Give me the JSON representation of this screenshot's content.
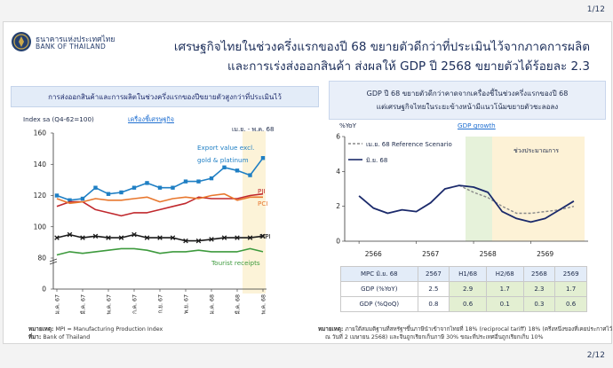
{
  "pages": {
    "top": "1/12",
    "bottom": "2/12"
  },
  "bank": {
    "name_th": "ธนาคารแห่งประเทศไทย",
    "name_en": "BANK OF THAILAND"
  },
  "headline": {
    "line1": "เศรษฐกิจไทยในช่วงครึ่งแรกของปี 68 ขยายตัวดีกว่าที่ประเมินไว้จากภาคการผลิต",
    "line2": "และการเร่งส่งออกสินค้า ส่งผลให้ GDP ปี 2568 ขยายตัวได้ร้อยละ 2.3"
  },
  "left": {
    "title": "การส่งออกสินค้าและการผลิตในช่วงครึ่งแรกของปีขยายตัวสูงกว่าที่ประเมินไว้",
    "index_label": "Index sa (Q4-62=100)",
    "link": "เครื่องชี้เศรษฐกิจ",
    "period": "เม.ย. - พ.ค. 68",
    "footnote_label": "หมายเหตุ:",
    "footnote": " MPI = Manufacturing Production Index",
    "source_label": "ที่มา:",
    "source": " Bank of Thailand"
  },
  "right": {
    "box_line1": "GDP ปี 68 ขยายตัวดีกว่าคาดจากเครื่องชี้ในช่วงครึ่งแรกของปี 68",
    "box_line2": "แต่เศรษฐกิจไทยในระยะข้างหน้ามีแนวโน้มขยายตัวชะลอลง",
    "unit": "%YoY",
    "link": "GDP growth",
    "forecast_label": "ช่วงประมาณการ",
    "footnote_label": "หมายเหตุ:",
    "footnote_line1": " ภายใต้สมมติฐานที่สหรัฐฯขึ้นภาษีนำเข้าจากไทยที่ 18% (reciprocal tariff) 18% (ครึ่งหนึ่งของที่เคยประกาศไว้",
    "footnote_line2": "ณ วันที่ 2 เมษายน 2568) และจีนถูกเรียกเก็บภาษี 30% ขณะที่ประเทศอื่นถูกเรียกเก็บ 10%"
  },
  "table": {
    "header": [
      "MPC มิ.ย. 68",
      "2567",
      "H1/68",
      "H2/68",
      "2568",
      "2569"
    ],
    "rows": [
      [
        "GDP (%YoY)",
        "2.5",
        "2.9",
        "1.7",
        "2.3",
        "1.7"
      ],
      [
        "GDP (%QoQ)",
        "0.8",
        "0.6",
        "0.1",
        "0.3",
        "0.6"
      ]
    ]
  },
  "chart_data": [
    {
      "type": "line",
      "ylabel": "Index sa (Q4-62=100)",
      "ylim": [
        0,
        160
      ],
      "axis_break": [
        0,
        80
      ],
      "yticks": [
        0,
        80,
        100,
        120,
        140,
        160
      ],
      "categories": [
        "ม.ค. 67",
        "ก.พ. 67",
        "มี.ค. 67",
        "เม.ย. 67",
        "พ.ค. 67",
        "มิ.ย. 67",
        "ก.ค. 67",
        "ส.ค. 67",
        "ก.ย. 67",
        "ต.ค. 67",
        "พ.ย. 67",
        "ธ.ค. 67",
        "ม.ค. 68",
        "ก.พ. 68",
        "มี.ค. 68",
        "เม.ย. 68",
        "พ.ค. 68"
      ],
      "tick_labels": [
        "ม.ค. 67",
        "",
        "มี.ค. 67",
        "",
        "พ.ค. 67",
        "",
        "ก.ค. 67",
        "",
        "ก.ย. 67",
        "",
        "พ.ย. 67",
        "",
        "ม.ค. 68",
        "",
        "มี.ค. 68",
        "",
        "พ.ค. 68"
      ],
      "highlight_range": [
        "เม.ย. 68",
        "พ.ค. 68"
      ],
      "series": [
        {
          "name": "Export value excl. gold & platinum",
          "color": "#1f7fc4",
          "marker": "square",
          "values": [
            120,
            117,
            118,
            125,
            121,
            122,
            125,
            128,
            125,
            125,
            129,
            129,
            131,
            138,
            136,
            133,
            144
          ]
        },
        {
          "name": "PII",
          "color": "#c0282d",
          "values": [
            113,
            116,
            116,
            111,
            109,
            107,
            109,
            109,
            111,
            113,
            115,
            119,
            118,
            118,
            118,
            120,
            121
          ]
        },
        {
          "name": "PCI",
          "color": "#e8772e",
          "values": [
            118,
            115,
            116,
            118,
            117,
            117,
            118,
            119,
            116,
            118,
            119,
            118,
            120,
            121,
            117,
            119,
            119
          ]
        },
        {
          "name": "MPI",
          "color": "#1a1a1a",
          "marker": "cross",
          "values": [
            93,
            95,
            93,
            94,
            93,
            93,
            95,
            93,
            93,
            93,
            91,
            91,
            92,
            93,
            93,
            93,
            94
          ]
        },
        {
          "name": "Tourist receipts",
          "color": "#3d9a3d",
          "values": [
            82,
            84,
            83,
            84,
            85,
            86,
            86,
            85,
            83,
            84,
            84,
            85,
            84,
            84,
            84,
            86,
            84
          ]
        }
      ]
    },
    {
      "type": "line",
      "ylabel": "%YoY",
      "ylim": [
        0,
        6
      ],
      "yticks": [
        0,
        2,
        4,
        6
      ],
      "x_labels": [
        "2566",
        "2567",
        "2568",
        "2569"
      ],
      "series": [
        {
          "name": "เม.ย. 68 Reference Scenario",
          "color": "#888888",
          "dashed": true,
          "values": [
            [
              2024.75,
              3.2
            ],
            [
              2025.0,
              2.8
            ],
            [
              2025.25,
              2.5
            ],
            [
              2025.5,
              2.0
            ],
            [
              2025.75,
              1.6
            ],
            [
              2026.0,
              1.6
            ],
            [
              2026.25,
              1.7
            ],
            [
              2026.5,
              1.8
            ],
            [
              2026.75,
              2.0
            ]
          ]
        },
        {
          "name": "มิ.ย. 68",
          "color": "#1b2a6b",
          "values": [
            [
              2023.0,
              2.6
            ],
            [
              2023.25,
              1.9
            ],
            [
              2023.5,
              1.6
            ],
            [
              2023.75,
              1.8
            ],
            [
              2024.0,
              1.7
            ],
            [
              2024.25,
              2.2
            ],
            [
              2024.5,
              3.0
            ],
            [
              2024.75,
              3.2
            ],
            [
              2025.0,
              3.1
            ],
            [
              2025.25,
              2.8
            ],
            [
              2025.5,
              1.7
            ],
            [
              2025.75,
              1.3
            ],
            [
              2026.0,
              1.1
            ],
            [
              2026.25,
              1.3
            ],
            [
              2026.5,
              1.8
            ],
            [
              2026.75,
              2.3
            ]
          ]
        }
      ]
    }
  ]
}
